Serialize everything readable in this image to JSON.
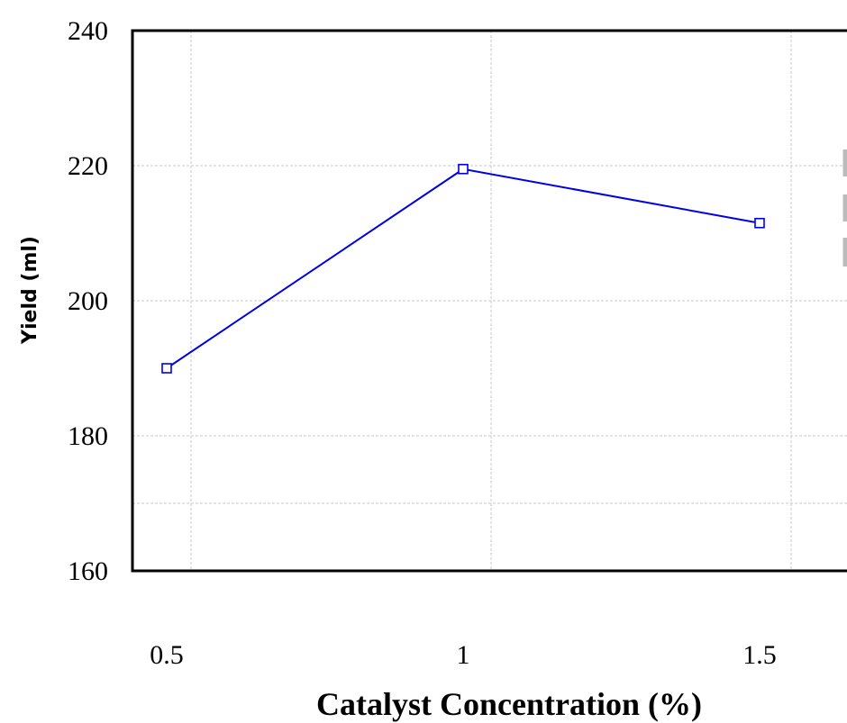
{
  "chart_data": {
    "type": "line",
    "x": [
      0.5,
      1,
      1.5
    ],
    "series": [
      {
        "values": [
          190,
          219.5,
          211.5
        ],
        "color": "#0000e6",
        "marker": "square"
      }
    ],
    "xlabel": "Catalyst Concentration (%)",
    "ylabel": "Yield (ml)",
    "xticks": [
      "0.5",
      "1",
      "1.5"
    ],
    "yticks": [
      "160",
      "180",
      "200",
      "220",
      "240"
    ],
    "ylim": [
      160,
      240
    ],
    "grid": true
  }
}
